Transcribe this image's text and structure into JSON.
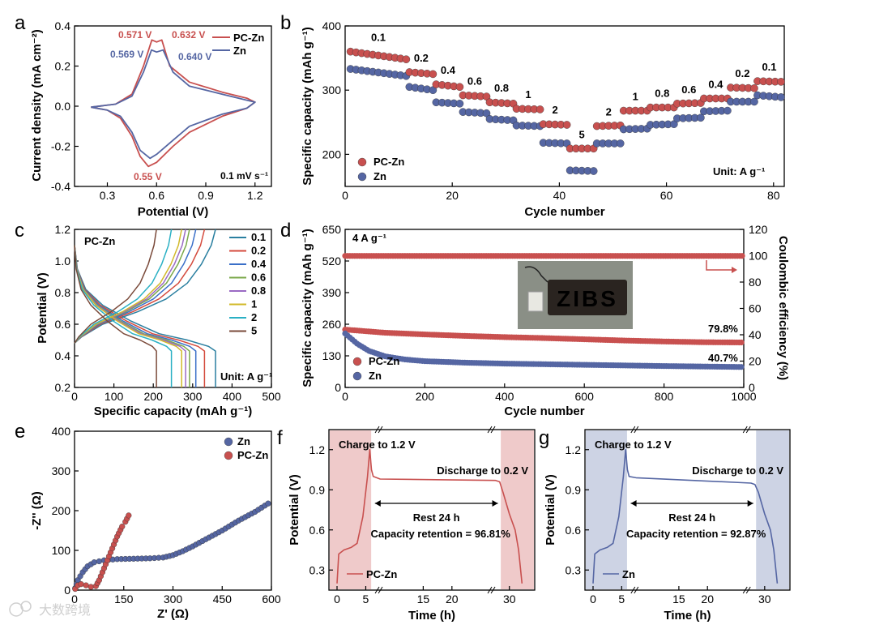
{
  "colors": {
    "pczn": "#c8504f",
    "zn": "#5566a3",
    "shade_red": "#e8b4b4",
    "shade_blue": "#b8c0d8",
    "inset_bg": "#8a8f86"
  },
  "watermark": "大数跨境",
  "chart_data": [
    {
      "id": "a",
      "type": "line",
      "panel_label": "a",
      "xlabel": "Potential (V)",
      "ylabel": "Current density (mA cm⁻²)",
      "xlim": [
        0.1,
        1.3
      ],
      "ylim": [
        -0.4,
        0.4
      ],
      "xticks": [
        "0.3",
        "0.6",
        "0.9",
        "1.2"
      ],
      "yticks": [
        "-0.4",
        "-0.2",
        "0.0",
        "0.2",
        "0.4"
      ],
      "legend": [
        "PC-Zn",
        "Zn"
      ],
      "annotations": {
        "pczn_peak1": "0.571 V",
        "pczn_peak2": "0.632 V",
        "zn_peak1": "0.569 V",
        "zn_peak2": "0.640 V",
        "red_peak": "0.55 V",
        "scan_rate": "0.1 mV s⁻¹"
      },
      "series": [
        {
          "name": "PC-Zn",
          "points": [
            [
              0.2,
              -0.005
            ],
            [
              0.35,
              0.01
            ],
            [
              0.45,
              0.06
            ],
            [
              0.52,
              0.2
            ],
            [
              0.571,
              0.33
            ],
            [
              0.6,
              0.32
            ],
            [
              0.632,
              0.33
            ],
            [
              0.68,
              0.2
            ],
            [
              0.8,
              0.12
            ],
            [
              1.0,
              0.07
            ],
            [
              1.15,
              0.04
            ],
            [
              1.2,
              0.02
            ],
            [
              1.15,
              -0.01
            ],
            [
              1.0,
              -0.05
            ],
            [
              0.8,
              -0.13
            ],
            [
              0.7,
              -0.2
            ],
            [
              0.6,
              -0.28
            ],
            [
              0.55,
              -0.3
            ],
            [
              0.5,
              -0.25
            ],
            [
              0.45,
              -0.15
            ],
            [
              0.38,
              -0.06
            ],
            [
              0.3,
              -0.02
            ],
            [
              0.2,
              -0.005
            ]
          ]
        },
        {
          "name": "Zn",
          "points": [
            [
              0.2,
              -0.005
            ],
            [
              0.35,
              0.01
            ],
            [
              0.45,
              0.05
            ],
            [
              0.52,
              0.17
            ],
            [
              0.569,
              0.28
            ],
            [
              0.6,
              0.27
            ],
            [
              0.64,
              0.28
            ],
            [
              0.7,
              0.17
            ],
            [
              0.8,
              0.1
            ],
            [
              1.0,
              0.06
            ],
            [
              1.15,
              0.03
            ],
            [
              1.2,
              0.02
            ],
            [
              1.15,
              -0.01
            ],
            [
              1.0,
              -0.04
            ],
            [
              0.8,
              -0.1
            ],
            [
              0.7,
              -0.17
            ],
            [
              0.6,
              -0.24
            ],
            [
              0.56,
              -0.26
            ],
            [
              0.5,
              -0.22
            ],
            [
              0.45,
              -0.13
            ],
            [
              0.38,
              -0.05
            ],
            [
              0.3,
              -0.02
            ],
            [
              0.2,
              -0.005
            ]
          ]
        }
      ]
    },
    {
      "id": "b",
      "type": "scatter",
      "panel_label": "b",
      "xlabel": "Cycle number",
      "ylabel": "Specific capacity (mAh g⁻¹)",
      "xlim": [
        0,
        82
      ],
      "ylim": [
        150,
        400
      ],
      "xticks": [
        "0",
        "20",
        "40",
        "60",
        "80"
      ],
      "yticks": [
        "200",
        "300",
        "400"
      ],
      "legend": [
        "PC-Zn",
        "Zn"
      ],
      "unit_label": "Unit: A g⁻¹",
      "rate_labels": [
        "0.1",
        "0.2",
        "0.4",
        "0.6",
        "0.8",
        "1",
        "2",
        "5",
        "2",
        "1",
        "0.8",
        "0.6",
        "0.4",
        "0.2",
        "0.1"
      ],
      "segments": [
        {
          "rate": "0.1",
          "x0": 1,
          "x1": 12,
          "pczn": [
            360,
            348
          ],
          "zn": [
            333,
            322
          ]
        },
        {
          "rate": "0.2",
          "x0": 12,
          "x1": 17,
          "pczn": [
            328,
            325
          ],
          "zn": [
            305,
            300
          ]
        },
        {
          "rate": "0.4",
          "x0": 17,
          "x1": 22,
          "pczn": [
            309,
            305
          ],
          "zn": [
            281,
            279
          ]
        },
        {
          "rate": "0.6",
          "x0": 22,
          "x1": 27,
          "pczn": [
            292,
            290
          ],
          "zn": [
            266,
            264
          ]
        },
        {
          "rate": "0.8",
          "x0": 27,
          "x1": 32,
          "pczn": [
            281,
            279
          ],
          "zn": [
            255,
            253
          ]
        },
        {
          "rate": "1",
          "x0": 32,
          "x1": 37,
          "pczn": [
            271,
            270
          ],
          "zn": [
            245,
            244
          ]
        },
        {
          "rate": "2",
          "x0": 37,
          "x1": 42,
          "pczn": [
            247,
            246
          ],
          "zn": [
            218,
            217
          ]
        },
        {
          "rate": "5",
          "x0": 42,
          "x1": 47,
          "pczn": [
            209,
            209
          ],
          "zn": [
            175,
            174
          ]
        },
        {
          "rate": "2",
          "x0": 47,
          "x1": 52,
          "pczn": [
            244,
            245
          ],
          "zn": [
            217,
            217
          ]
        },
        {
          "rate": "1",
          "x0": 52,
          "x1": 57,
          "pczn": [
            268,
            268
          ],
          "zn": [
            239,
            240
          ]
        },
        {
          "rate": "0.8",
          "x0": 57,
          "x1": 62,
          "pczn": [
            273,
            273
          ],
          "zn": [
            246,
            247
          ]
        },
        {
          "rate": "0.6",
          "x0": 62,
          "x1": 67,
          "pczn": [
            279,
            280
          ],
          "zn": [
            256,
            257
          ]
        },
        {
          "rate": "0.4",
          "x0": 67,
          "x1": 72,
          "pczn": [
            287,
            287
          ],
          "zn": [
            267,
            268
          ]
        },
        {
          "rate": "0.2",
          "x0": 72,
          "x1": 77,
          "pczn": [
            304,
            303
          ],
          "zn": [
            282,
            282
          ]
        },
        {
          "rate": "0.1",
          "x0": 77,
          "x1": 82,
          "pczn": [
            314,
            313
          ],
          "zn": [
            292,
            289
          ]
        }
      ]
    },
    {
      "id": "c",
      "type": "line",
      "panel_label": "c",
      "title": "PC-Zn",
      "xlabel": "Specific capacity (mAh g⁻¹)",
      "ylabel": "Potential (V)",
      "xlim": [
        0,
        500
      ],
      "ylim": [
        0.2,
        1.2
      ],
      "xticks": [
        "0",
        "100",
        "200",
        "300",
        "400",
        "500"
      ],
      "yticks": [
        "0.2",
        "0.4",
        "0.6",
        "0.8",
        "1.0",
        "1.2"
      ],
      "unit_label": "Unit: A g⁻¹",
      "series": [
        {
          "name": "0.1",
          "color": "#2a7fa0",
          "capacity": 358
        },
        {
          "name": "0.2",
          "color": "#d44a3c",
          "capacity": 330
        },
        {
          "name": "0.4",
          "color": "#3a6fc8",
          "capacity": 308
        },
        {
          "name": "0.6",
          "color": "#7aa84a",
          "capacity": 292
        },
        {
          "name": "0.8",
          "color": "#9a6ac4",
          "capacity": 282
        },
        {
          "name": "1",
          "color": "#d1b92a",
          "capacity": 272
        },
        {
          "name": "2",
          "color": "#2ab0c4",
          "capacity": 246
        },
        {
          "name": "5",
          "color": "#7a4a3a",
          "capacity": 208
        }
      ]
    },
    {
      "id": "d",
      "type": "scatter",
      "panel_label": "d",
      "xlabel": "Cycle number",
      "ylabel": "Specific capacity (mAh g⁻¹)",
      "ylabel2": "Coulombic efficiency (%)",
      "xlim": [
        0,
        1000
      ],
      "ylim": [
        0,
        650
      ],
      "y2lim": [
        0,
        120
      ],
      "xticks": [
        "0",
        "200",
        "400",
        "600",
        "800",
        "1000"
      ],
      "yticks": [
        "0",
        "130",
        "260",
        "390",
        "520",
        "650"
      ],
      "y2ticks": [
        "0",
        "20",
        "40",
        "60",
        "80",
        "100",
        "120"
      ],
      "current_label": "4 A g⁻¹",
      "legend": [
        "PC-Zn",
        "Zn"
      ],
      "retention_pczn": "79.8%",
      "retention_zn": "40.7%",
      "inset_text": "ZIBS",
      "series": [
        {
          "name": "PC-Zn",
          "points": [
            [
              0,
              238
            ],
            [
              100,
              225
            ],
            [
              200,
              218
            ],
            [
              300,
              212
            ],
            [
              400,
              207
            ],
            [
              500,
              203
            ],
            [
              600,
              198
            ],
            [
              700,
              193
            ],
            [
              800,
              189
            ],
            [
              900,
              186
            ],
            [
              1000,
              185
            ]
          ]
        },
        {
          "name": "Zn",
          "points": [
            [
              0,
              222
            ],
            [
              30,
              180
            ],
            [
              60,
              150
            ],
            [
              100,
              128
            ],
            [
              150,
              115
            ],
            [
              200,
              108
            ],
            [
              300,
              102
            ],
            [
              400,
              98
            ],
            [
              600,
              93
            ],
            [
              800,
              88
            ],
            [
              1000,
              84
            ]
          ]
        },
        {
          "name": "CE",
          "value": 99.5
        }
      ]
    },
    {
      "id": "e",
      "type": "scatter",
      "panel_label": "e",
      "xlabel": "Z' (Ω)",
      "ylabel": "-Z'' (Ω)",
      "xlim": [
        0,
        600
      ],
      "ylim": [
        0,
        400
      ],
      "xticks": [
        "0",
        "150",
        "300",
        "450",
        "600"
      ],
      "yticks": [
        "0",
        "100",
        "200",
        "300",
        "400"
      ],
      "legend": [
        "Zn",
        "PC-Zn"
      ],
      "series": [
        {
          "name": "Zn",
          "points": [
            [
              2,
              5
            ],
            [
              10,
              25
            ],
            [
              25,
              45
            ],
            [
              40,
              60
            ],
            [
              60,
              70
            ],
            [
              90,
              75
            ],
            [
              130,
              78
            ],
            [
              180,
              79
            ],
            [
              230,
              80
            ],
            [
              270,
              82
            ],
            [
              300,
              88
            ],
            [
              330,
              98
            ],
            [
              360,
              110
            ],
            [
              400,
              128
            ],
            [
              450,
              150
            ],
            [
              500,
              175
            ],
            [
              550,
              197
            ],
            [
              590,
              218
            ]
          ]
        },
        {
          "name": "PC-Zn",
          "points": [
            [
              2,
              3
            ],
            [
              10,
              12
            ],
            [
              20,
              15
            ],
            [
              35,
              12
            ],
            [
              50,
              8
            ],
            [
              65,
              10
            ],
            [
              75,
              25
            ],
            [
              85,
              45
            ],
            [
              100,
              75
            ],
            [
              115,
              105
            ],
            [
              130,
              135
            ],
            [
              145,
              160
            ],
            [
              155,
              172
            ],
            [
              165,
              188
            ]
          ]
        }
      ]
    },
    {
      "id": "f",
      "type": "line",
      "panel_label": "f",
      "xlabel": "Time (h)",
      "ylabel": "Potential (V)",
      "xticks": [
        "0",
        "5",
        "15",
        "20",
        "30"
      ],
      "yticks": [
        "0.3",
        "0.6",
        "0.9",
        "1.2"
      ],
      "ylim": [
        0.15,
        1.35
      ],
      "charge_label": "Charge to 1.2 V",
      "discharge_label": "Discharge to 0.2 V",
      "rest_label": "Rest 24 h",
      "retention_label": "Capacity retention = 96.81%",
      "legend": "PC-Zn",
      "series": [
        {
          "name": "PC-Zn",
          "rest_start": 0.98,
          "rest_end": 0.97
        }
      ]
    },
    {
      "id": "g",
      "type": "line",
      "panel_label": "g",
      "xlabel": "Time (h)",
      "ylabel": "Potential (V)",
      "xticks": [
        "0",
        "5",
        "15",
        "20",
        "30"
      ],
      "yticks": [
        "0.3",
        "0.6",
        "0.9",
        "1.2"
      ],
      "ylim": [
        0.15,
        1.35
      ],
      "charge_label": "Charge to 1.2 V",
      "discharge_label": "Discharge to 0.2 V",
      "rest_label": "Rest 24 h",
      "retention_label": "Capacity retention = 92.87%",
      "legend": "Zn",
      "series": [
        {
          "name": "Zn",
          "rest_start": 0.99,
          "rest_end": 0.95
        }
      ]
    }
  ]
}
